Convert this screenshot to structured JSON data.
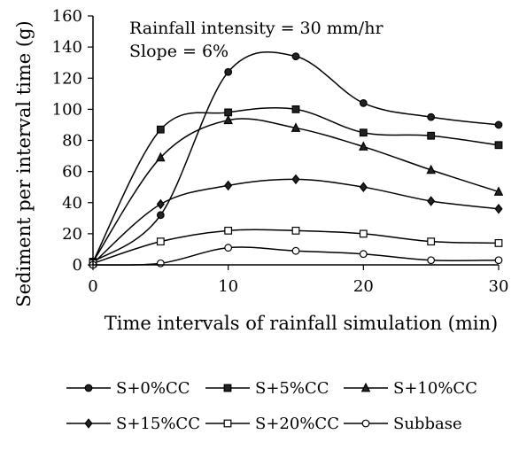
{
  "chart_data": {
    "type": "line",
    "xlabel": "Time intervals of rainfall simulation (min)",
    "ylabel": "Sediment per interval time (g)",
    "xlim": [
      0,
      30
    ],
    "ylim": [
      0,
      160
    ],
    "xticks": [
      0,
      10,
      20,
      30
    ],
    "yticks": [
      0,
      20,
      40,
      60,
      80,
      100,
      120,
      140,
      160
    ],
    "grid": false,
    "legend_position": "bottom",
    "annotations": [
      "Rainfall intensity = 30 mm/hr",
      "Slope = 6%"
    ],
    "x": [
      0,
      5,
      10,
      15,
      20,
      25,
      30
    ],
    "series": [
      {
        "name": "S+0%CC",
        "marker": "circle-filled",
        "values": [
          2,
          32,
          124,
          134,
          104,
          95,
          90
        ]
      },
      {
        "name": "S+5%CC",
        "marker": "square-filled",
        "values": [
          2,
          87,
          98,
          100,
          85,
          83,
          77
        ]
      },
      {
        "name": "S+10%CC",
        "marker": "triangle-filled",
        "values": [
          2,
          69,
          93,
          88,
          76,
          61,
          47
        ]
      },
      {
        "name": "S+15%CC",
        "marker": "diamond-filled",
        "values": [
          1,
          39,
          51,
          55,
          50,
          41,
          36
        ]
      },
      {
        "name": "S+20%CC",
        "marker": "square-open",
        "values": [
          1,
          15,
          22,
          22,
          20,
          15,
          14
        ]
      },
      {
        "name": "Subbase",
        "marker": "circle-open",
        "values": [
          0,
          1,
          11,
          9,
          7,
          3,
          3
        ]
      }
    ]
  }
}
